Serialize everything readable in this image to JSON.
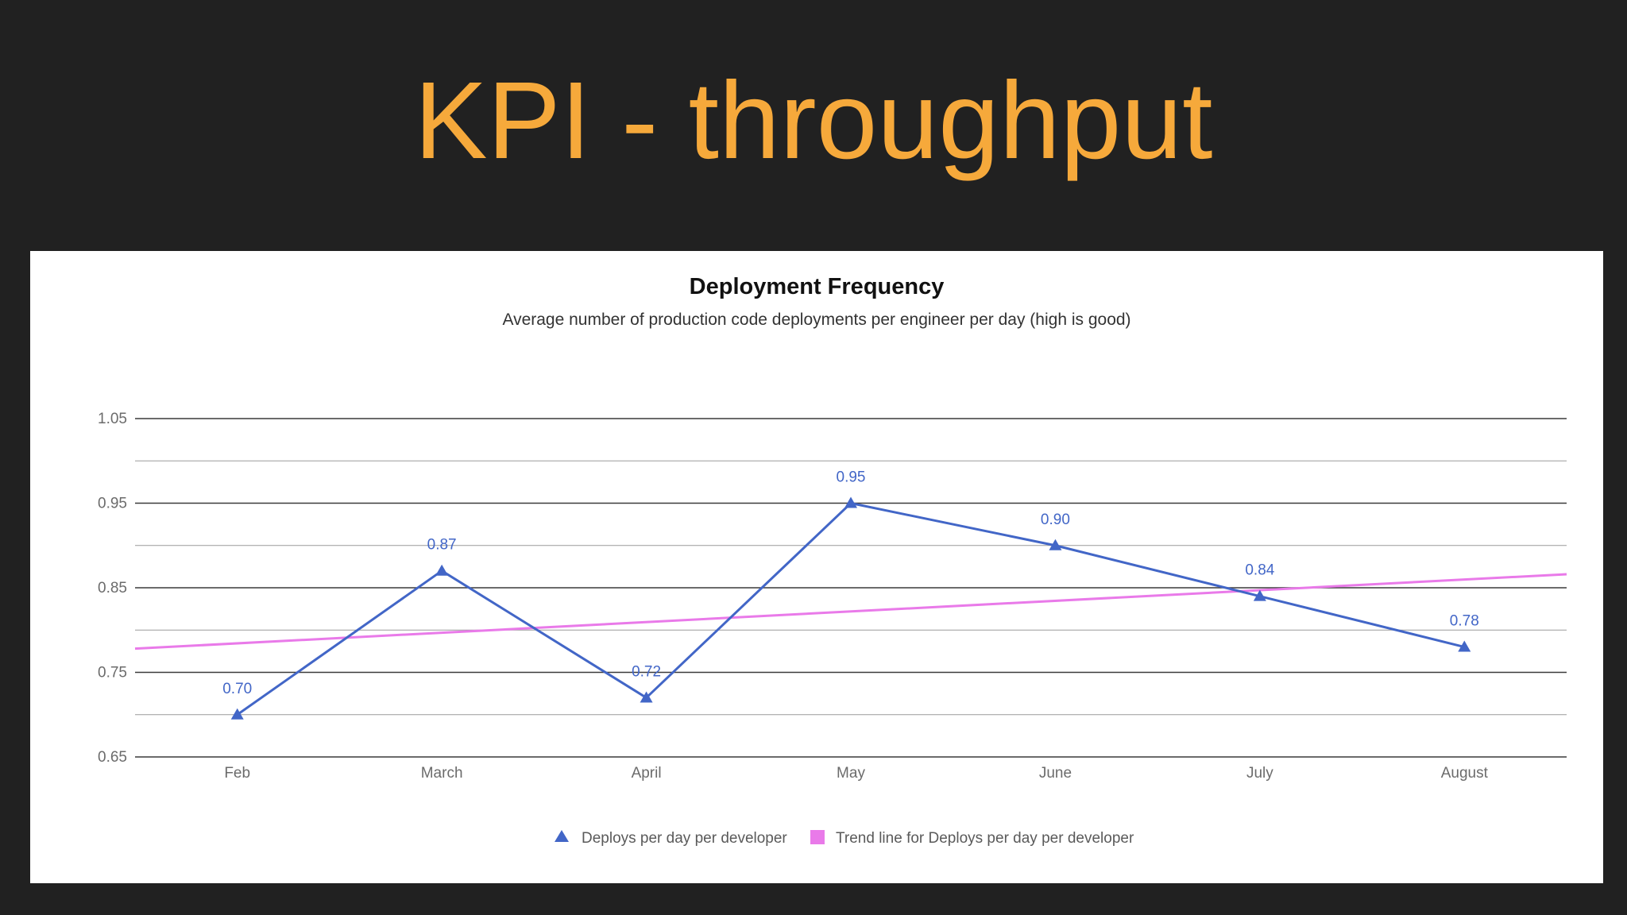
{
  "slide": {
    "title": "KPI - throughput"
  },
  "colors": {
    "background": "#212121",
    "title": "#f6a93b",
    "series": "#4266c7",
    "trend": "#e97ae9"
  },
  "chart_data": {
    "type": "line",
    "title": "Deployment Frequency",
    "subtitle": "Average number of production code deployments per engineer per day (high is good)",
    "categories": [
      "Feb",
      "March",
      "April",
      "May",
      "June",
      "July",
      "August"
    ],
    "series": [
      {
        "name": "Deploys per day per developer",
        "values": [
          0.7,
          0.87,
          0.72,
          0.95,
          0.9,
          0.84,
          0.78
        ],
        "labels": [
          "0.70",
          "0.87",
          "0.72",
          "0.95",
          "0.90",
          "0.84",
          "0.78"
        ],
        "marker": "triangle",
        "color": "#4266c7"
      },
      {
        "name": "Trend line for Deploys per day per developer",
        "trend_start": 0.778,
        "trend_end": 0.866,
        "color": "#e97ae9"
      }
    ],
    "yticks": [
      "1.05",
      "0.95",
      "0.85",
      "0.75",
      "0.65"
    ],
    "ylim": [
      0.65,
      1.05
    ],
    "xlabel": "",
    "ylabel": "",
    "grid": true,
    "legend": "bottom"
  }
}
